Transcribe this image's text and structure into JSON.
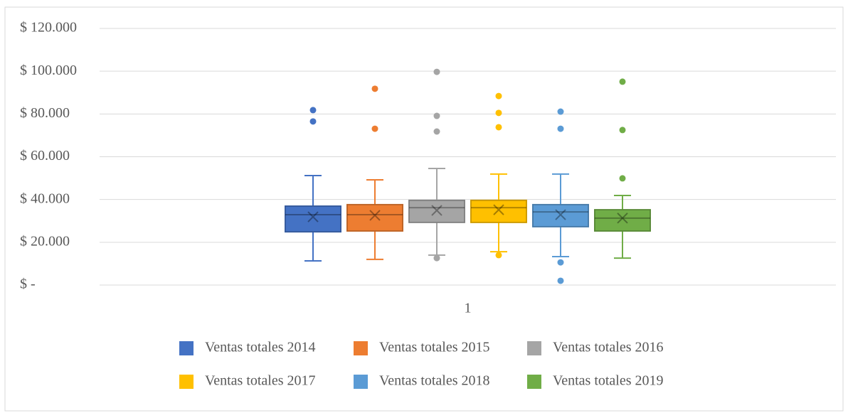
{
  "chart_data": {
    "type": "box",
    "categories": [
      "1"
    ],
    "ylim": [
      0,
      120000
    ],
    "yticks": [
      {
        "value": 0,
        "label": "$ -"
      },
      {
        "value": 20000,
        "label": "$ 20.000"
      },
      {
        "value": 40000,
        "label": "$ 40.000"
      },
      {
        "value": 60000,
        "label": "$ 60.000"
      },
      {
        "value": 80000,
        "label": "$ 80.000"
      },
      {
        "value": 100000,
        "label": "$ 100.000"
      },
      {
        "value": 120000,
        "label": "$ 120.000"
      }
    ],
    "grid": true,
    "legend": "bottom",
    "series": [
      {
        "name": "Ventas totales 2014",
        "color": "#4472c4",
        "min": 11300,
        "q1": 24900,
        "median": 32900,
        "q3": 36900,
        "max": 51200,
        "mean": 31900,
        "outliers": [
          81800,
          76500
        ]
      },
      {
        "name": "Ventas totales 2015",
        "color": "#ed7d31",
        "min": 12000,
        "q1": 25300,
        "median": 32900,
        "q3": 37600,
        "max": 49200,
        "mean": 32600,
        "outliers": [
          91800,
          73100
        ]
      },
      {
        "name": "Ventas totales 2016",
        "color": "#a5a5a5",
        "min": 14000,
        "q1": 29300,
        "median": 36200,
        "q3": 39600,
        "max": 54500,
        "mean": 34900,
        "outliers": [
          99700,
          79100,
          71800,
          12600
        ]
      },
      {
        "name": "Ventas totales 2017",
        "color": "#ffc000",
        "min": 15600,
        "q1": 29300,
        "median": 36200,
        "q3": 39600,
        "max": 51900,
        "mean": 35200,
        "outliers": [
          88400,
          80500,
          73800,
          14000
        ]
      },
      {
        "name": "Ventas totales 2018",
        "color": "#5b9bd5",
        "min": 13300,
        "q1": 27300,
        "median": 34200,
        "q3": 37600,
        "max": 51900,
        "mean": 32900,
        "outliers": [
          81100,
          73100,
          10600,
          2000
        ]
      },
      {
        "name": "Ventas totales 2019",
        "color": "#70ad47",
        "min": 12600,
        "q1": 25300,
        "median": 31300,
        "q3": 35200,
        "max": 41900,
        "mean": 31300,
        "outliers": [
          95100,
          72500,
          49900
        ]
      }
    ]
  }
}
